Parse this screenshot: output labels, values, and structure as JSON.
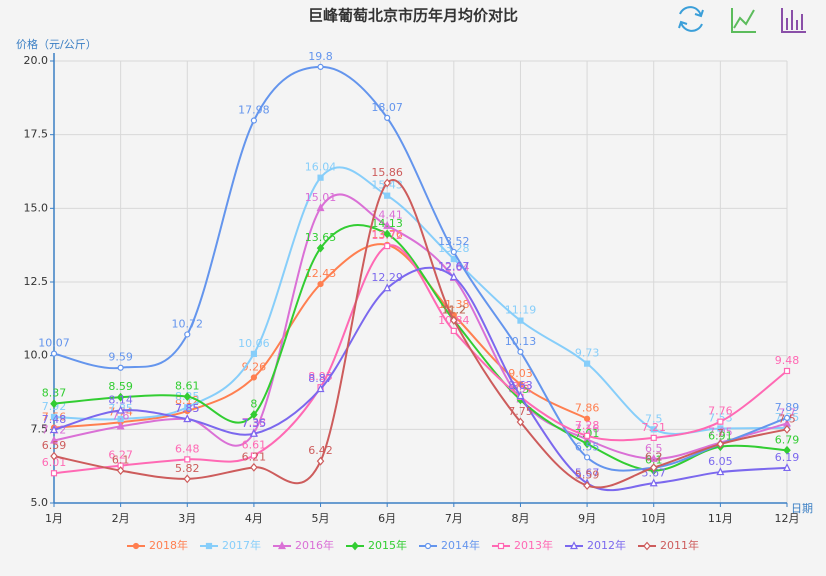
{
  "chart_data": {
    "type": "line",
    "title": "巨峰葡萄北京市历年月均价对比",
    "y_label": "价格（元/公斤）",
    "x_label": "日期",
    "categories": [
      "1月",
      "2月",
      "3月",
      "4月",
      "5月",
      "6月",
      "7月",
      "8月",
      "9月",
      "10月",
      "11月",
      "12月"
    ],
    "ylim": [
      5,
      20
    ],
    "yticks": [
      {
        "value": 5,
        "label": "5.0"
      },
      {
        "value": 7.5,
        "label": "7.5"
      },
      {
        "value": 10,
        "label": "10.0"
      },
      {
        "value": 12.5,
        "label": "12.5"
      },
      {
        "value": 15,
        "label": "15.0"
      },
      {
        "value": 17.5,
        "label": "17.5"
      },
      {
        "value": 20,
        "label": "20.0"
      }
    ],
    "grid": true,
    "smooth": true,
    "series": [
      {
        "name": "2018年",
        "color": "#ff7f50",
        "symbol": "circle",
        "values": [
          7.56,
          7.74,
          8.12,
          9.26,
          12.43,
          13.76,
          11.38,
          9.03,
          7.86,
          null,
          null,
          null
        ]
      },
      {
        "name": "2017年",
        "color": "#87cefa",
        "symbol": "rect",
        "values": [
          7.92,
          7.85,
          8.25,
          10.06,
          16.04,
          15.43,
          13.28,
          11.19,
          9.73,
          7.5,
          7.53,
          7.55
        ]
      },
      {
        "name": "2016年",
        "color": "#da70d6",
        "symbol": "triangle",
        "values": [
          7.12,
          7.6,
          7.85,
          7.38,
          15.01,
          14.41,
          12.64,
          8.52,
          7.16,
          6.5,
          7.05,
          7.7
        ]
      },
      {
        "name": "2015年",
        "color": "#32cd32",
        "symbol": "diamond",
        "values": [
          8.37,
          8.59,
          8.61,
          8.0,
          13.65,
          14.13,
          11.2,
          8.5,
          7.01,
          6.1,
          6.91,
          6.79
        ]
      },
      {
        "name": "2014年",
        "color": "#6495ed",
        "symbol": "emptyCircle",
        "values": [
          10.07,
          9.59,
          10.72,
          17.98,
          19.8,
          18.07,
          13.52,
          10.13,
          6.55,
          6.2,
          7.0,
          7.89
        ]
      },
      {
        "name": "2013年",
        "color": "#ff69b4",
        "symbol": "emptyRect",
        "values": [
          6.01,
          6.27,
          6.48,
          6.61,
          8.93,
          13.72,
          10.84,
          8.6,
          7.28,
          7.21,
          7.76,
          9.48
        ]
      },
      {
        "name": "2012年",
        "color": "#7b68ee",
        "symbol": "emptyTriangle",
        "values": [
          7.48,
          8.14,
          7.85,
          7.35,
          8.87,
          12.29,
          12.67,
          8.63,
          5.67,
          5.67,
          6.05,
          6.19
        ]
      },
      {
        "name": "2011年",
        "color": "#cd5c5c",
        "symbol": "emptyDiamond",
        "values": [
          6.59,
          6.1,
          5.82,
          6.21,
          6.42,
          15.86,
          11.2,
          7.75,
          5.59,
          6.2,
          7.0,
          7.5
        ]
      }
    ]
  }
}
